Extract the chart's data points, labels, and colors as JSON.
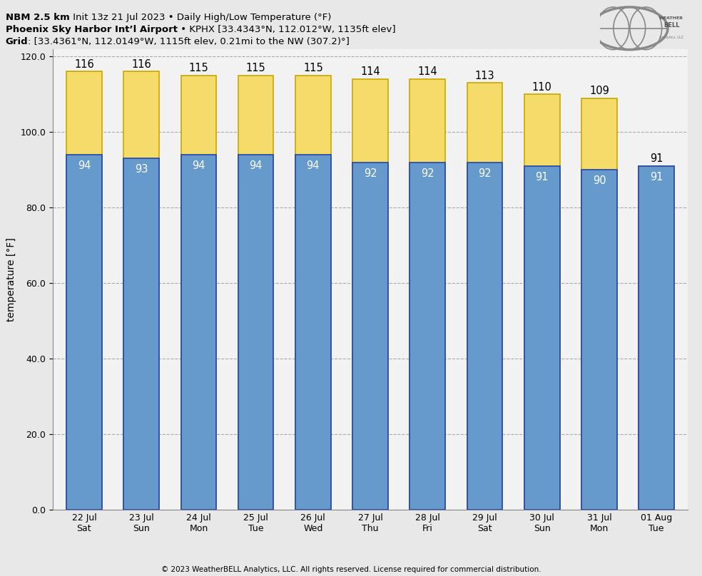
{
  "categories": [
    "22 Jul\nSat",
    "23 Jul\nSun",
    "24 Jul\nMon",
    "25 Jul\nTue",
    "26 Jul\nWed",
    "27 Jul\nThu",
    "28 Jul\nFri",
    "29 Jul\nSat",
    "30 Jul\nSun",
    "31 Jul\nMon",
    "01 Aug\nTue"
  ],
  "high_temps": [
    116,
    116,
    115,
    115,
    115,
    114,
    114,
    113,
    110,
    109,
    91
  ],
  "low_temps": [
    94,
    93,
    94,
    94,
    94,
    92,
    92,
    92,
    91,
    90,
    91
  ],
  "bar_color_yellow": "#F5DC6A",
  "bar_color_blue": "#6699CC",
  "bar_edge_color": "#C8A800",
  "bar_edge_color_blue": "#2244AA",
  "ylim_min": 0,
  "ylim_max": 120,
  "yticks": [
    0.0,
    20.0,
    40.0,
    60.0,
    80.0,
    100.0,
    120.0
  ],
  "background_color": "#E8E8E8",
  "plot_bg_color": "#F2F2F2",
  "grid_color": "#AAAAAA",
  "figsize": [
    9.84,
    8.08
  ],
  "dpi": 100,
  "ylabel": "temperature [°F]",
  "copyright": "© 2023 WeatherBELL Analytics, LLC. All rights reserved. License required for commercial distribution."
}
